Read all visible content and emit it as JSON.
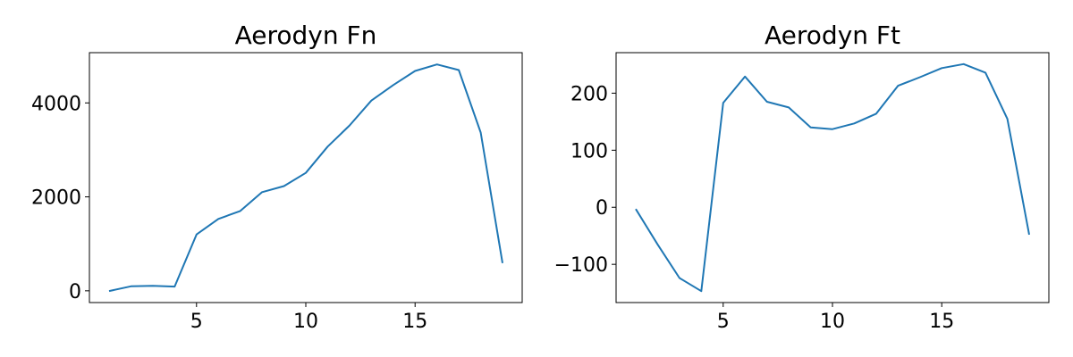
{
  "colors": {
    "series": "#1f77b4",
    "axes": "#000000",
    "background": "#ffffff"
  },
  "chart_data": [
    {
      "type": "line",
      "title": "Aerodyn Fn",
      "xlabel": "",
      "ylabel": "",
      "grid": false,
      "xlim": [
        0.1,
        19.9
      ],
      "ylim": [
        -250,
        5070
      ],
      "xticks": [
        5,
        10,
        15
      ],
      "yticks": [
        0,
        2000,
        4000
      ],
      "xtick_labels": [
        "5",
        "10",
        "15"
      ],
      "ytick_labels": [
        "0",
        "2000",
        "4000"
      ],
      "x": [
        1,
        2,
        3,
        4,
        5,
        6,
        7,
        8,
        9,
        10,
        11,
        12,
        13,
        14,
        15,
        16,
        17,
        18,
        19
      ],
      "series": [
        {
          "values": [
            -5,
            95,
            105,
            90,
            1200,
            1530,
            1700,
            2100,
            2230,
            2510,
            3070,
            3520,
            4050,
            4380,
            4680,
            4820,
            4700,
            3370,
            590
          ]
        }
      ]
    },
    {
      "type": "line",
      "title": "Aerodyn Ft",
      "xlabel": "",
      "ylabel": "",
      "grid": false,
      "xlim": [
        0.1,
        19.9
      ],
      "ylim": [
        -167,
        271
      ],
      "xticks": [
        5,
        10,
        15
      ],
      "yticks": [
        -100,
        0,
        100,
        200
      ],
      "xtick_labels": [
        "5",
        "10",
        "15"
      ],
      "ytick_labels": [
        "−100",
        "0",
        "100",
        "200"
      ],
      "x": [
        1,
        2,
        3,
        4,
        5,
        6,
        7,
        8,
        9,
        10,
        11,
        12,
        13,
        14,
        15,
        16,
        17,
        18,
        19
      ],
      "series": [
        {
          "values": [
            -3,
            -65,
            -124,
            -147,
            183,
            229,
            185,
            175,
            140,
            137,
            147,
            164,
            213,
            228,
            244,
            251,
            236,
            155,
            -48
          ]
        }
      ]
    }
  ]
}
